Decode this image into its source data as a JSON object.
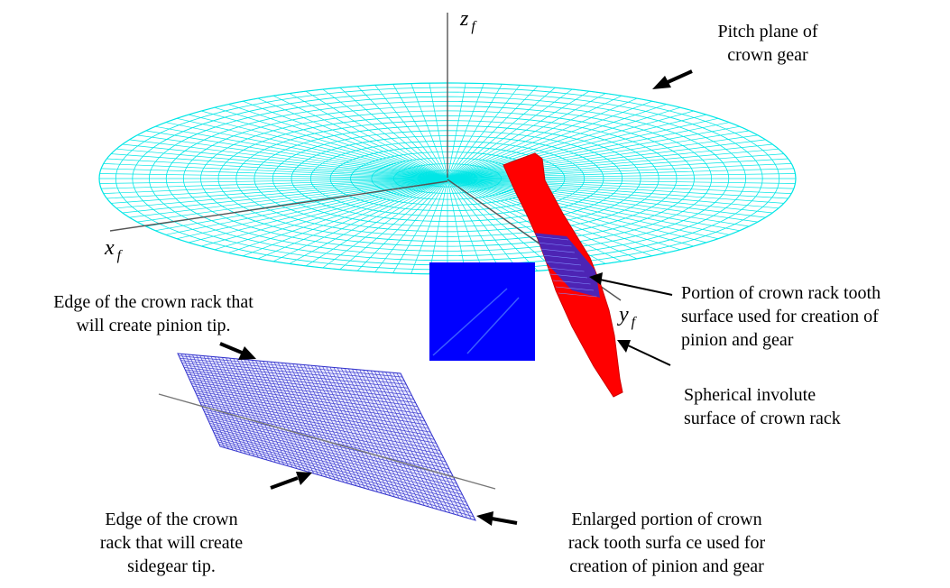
{
  "axes": {
    "z": {
      "letter": "z",
      "sub": "f"
    },
    "x": {
      "letter": "x",
      "sub": "f"
    },
    "y": {
      "letter": "y",
      "sub": "f"
    }
  },
  "labels": {
    "pitch_plane": [
      "Pitch plane of",
      "crown gear"
    ],
    "portion_used": [
      "Portion of crown rack tooth",
      "surface used for creation of",
      "pinion and gear"
    ],
    "spherical_involute": [
      "Spherical involute",
      "surface of crown rack"
    ],
    "edge_pinion": [
      "Edge of the crown rack that",
      "will create pinion tip."
    ],
    "edge_sidegear": [
      "Edge of the crown",
      "rack that will create",
      "sidegear tip."
    ],
    "enlarged_portion": [
      "Enlarged portion of crown",
      "rack tooth surfa ce used for",
      "creation of pinion and gear"
    ]
  },
  "colors": {
    "pitch_plane_mesh": "#00e6e6",
    "involute_surface": "#ff0000",
    "tooth_portion": "#0000ff",
    "enlarged_mesh": "#3333cc",
    "axis_line": "#555555"
  }
}
